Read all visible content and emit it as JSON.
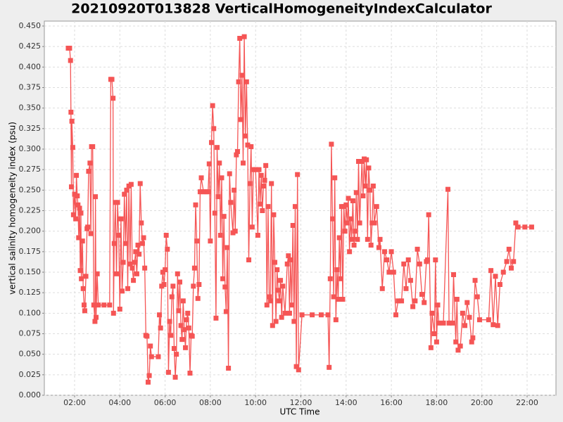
{
  "chart_data": {
    "type": "line",
    "title": "20210920T013828 VerticalHomogeneityIndexCalculator",
    "x_label": "UTC Time",
    "y_label": "vertical salinity homogeneity index (psu)",
    "grid": true,
    "xlim": [
      0.663,
      23.275
    ],
    "ylim": [
      0,
      0.456
    ],
    "xticks": [
      {
        "value": 2,
        "label": "02:00"
      },
      {
        "value": 4,
        "label": "04:00"
      },
      {
        "value": 6,
        "label": "06:00"
      },
      {
        "value": 8,
        "label": "08:00"
      },
      {
        "value": 10,
        "label": "10:00"
      },
      {
        "value": 12,
        "label": "12:00"
      },
      {
        "value": 14,
        "label": "14:00"
      },
      {
        "value": 16,
        "label": "16:00"
      },
      {
        "value": 18,
        "label": "18:00"
      },
      {
        "value": 20,
        "label": "20:00"
      },
      {
        "value": 22,
        "label": "22:00"
      }
    ],
    "yticks": [
      {
        "value": 0,
        "label": "0.000"
      },
      {
        "value": 0.025,
        "label": "0.025"
      },
      {
        "value": 0.05,
        "label": "0.050"
      },
      {
        "value": 0.075,
        "label": "0.075"
      },
      {
        "value": 0.1,
        "label": "0.100"
      },
      {
        "value": 0.125,
        "label": "0.125"
      },
      {
        "value": 0.15,
        "label": "0.150"
      },
      {
        "value": 0.175,
        "label": "0.175"
      },
      {
        "value": 0.2,
        "label": "0.200"
      },
      {
        "value": 0.225,
        "label": "0.225"
      },
      {
        "value": 0.25,
        "label": "0.250"
      },
      {
        "value": 0.275,
        "label": "0.275"
      },
      {
        "value": 0.3,
        "label": "0.300"
      },
      {
        "value": 0.325,
        "label": "0.325"
      },
      {
        "value": 0.35,
        "label": "0.350"
      },
      {
        "value": 0.375,
        "label": "0.375"
      },
      {
        "value": 0.4,
        "label": "0.400"
      },
      {
        "value": 0.425,
        "label": "0.425"
      },
      {
        "value": 0.45,
        "label": "0.450"
      }
    ],
    "series": [
      {
        "color": "#f55555",
        "x": [
          1.72,
          1.78,
          1.82,
          1.84,
          1.86,
          1.88,
          1.92,
          1.95,
          2.0,
          2.05,
          2.08,
          2.12,
          2.15,
          2.18,
          2.22,
          2.25,
          2.28,
          2.3,
          2.35,
          2.38,
          2.42,
          2.45,
          2.5,
          2.55,
          2.58,
          2.62,
          2.68,
          2.72,
          2.75,
          2.8,
          2.85,
          2.9,
          2.92,
          2.95,
          3.0,
          3.05,
          3.3,
          3.55,
          3.6,
          3.65,
          3.7,
          3.72,
          3.75,
          3.8,
          3.85,
          3.9,
          3.95,
          4.0,
          4.05,
          4.1,
          4.15,
          4.2,
          4.25,
          4.3,
          4.35,
          4.4,
          4.45,
          4.5,
          4.55,
          4.6,
          4.65,
          4.7,
          4.75,
          4.8,
          4.85,
          4.9,
          4.95,
          5.0,
          5.05,
          5.1,
          5.15,
          5.2,
          5.25,
          5.3,
          5.35,
          5.4,
          5.7,
          5.75,
          5.8,
          5.85,
          5.9,
          5.95,
          6.0,
          6.05,
          6.1,
          6.15,
          6.2,
          6.25,
          6.3,
          6.35,
          6.4,
          6.45,
          6.5,
          6.55,
          6.6,
          6.65,
          6.7,
          6.75,
          6.8,
          6.85,
          6.9,
          6.95,
          7.0,
          7.05,
          7.1,
          7.15,
          7.2,
          7.25,
          7.3,
          7.35,
          7.4,
          7.45,
          7.5,
          7.55,
          7.6,
          7.7,
          7.8,
          7.9,
          7.95,
          8.0,
          8.05,
          8.1,
          8.15,
          8.2,
          8.25,
          8.3,
          8.35,
          8.4,
          8.45,
          8.5,
          8.55,
          8.6,
          8.65,
          8.7,
          8.75,
          8.8,
          8.85,
          8.9,
          9.0,
          9.05,
          9.1,
          9.15,
          9.2,
          9.25,
          9.3,
          9.35,
          9.4,
          9.45,
          9.5,
          9.55,
          9.6,
          9.65,
          9.7,
          9.75,
          9.8,
          9.85,
          9.9,
          10.0,
          10.1,
          10.15,
          10.2,
          10.25,
          10.3,
          10.35,
          10.4,
          10.45,
          10.5,
          10.55,
          10.6,
          10.65,
          10.7,
          10.75,
          10.8,
          10.85,
          10.9,
          10.95,
          11.0,
          11.05,
          11.1,
          11.15,
          11.2,
          11.3,
          11.4,
          11.45,
          11.5,
          11.55,
          11.6,
          11.65,
          11.7,
          11.75,
          11.8,
          11.85,
          11.9,
          12.05,
          12.5,
          12.9,
          13.2,
          13.25,
          13.3,
          13.35,
          13.4,
          13.45,
          13.5,
          13.55,
          13.6,
          13.65,
          13.7,
          13.75,
          13.8,
          13.85,
          13.9,
          13.95,
          14.0,
          14.05,
          14.1,
          14.15,
          14.2,
          14.25,
          14.3,
          14.35,
          14.4,
          14.45,
          14.5,
          14.55,
          14.6,
          14.7,
          14.75,
          14.8,
          14.85,
          14.9,
          14.95,
          15.0,
          15.05,
          15.1,
          15.15,
          15.2,
          15.25,
          15.35,
          15.45,
          15.5,
          15.6,
          15.7,
          15.8,
          15.9,
          16.0,
          16.1,
          16.2,
          16.3,
          16.45,
          16.55,
          16.65,
          16.75,
          16.85,
          16.95,
          17.05,
          17.15,
          17.25,
          17.35,
          17.45,
          17.55,
          17.6,
          17.65,
          17.75,
          17.8,
          17.9,
          17.95,
          18.0,
          18.05,
          18.1,
          18.3,
          18.5,
          18.55,
          18.7,
          18.75,
          18.85,
          18.9,
          18.95,
          19.05,
          19.15,
          19.25,
          19.35,
          19.45,
          19.55,
          19.6,
          19.7,
          19.8,
          19.9,
          20.3,
          20.4,
          20.5,
          20.6,
          20.7,
          20.8,
          20.95,
          21.1,
          21.2,
          21.3,
          21.4,
          21.5,
          21.6,
          21.9,
          22.2
        ],
        "values": [
          0.423,
          0.423,
          0.408,
          0.345,
          0.254,
          0.334,
          0.302,
          0.22,
          0.245,
          0.215,
          0.268,
          0.243,
          0.232,
          0.192,
          0.228,
          0.152,
          0.222,
          0.142,
          0.188,
          0.13,
          0.11,
          0.103,
          0.145,
          0.203,
          0.205,
          0.273,
          0.283,
          0.197,
          0.303,
          0.303,
          0.11,
          0.09,
          0.242,
          0.095,
          0.148,
          0.11,
          0.11,
          0.11,
          0.385,
          0.385,
          0.362,
          0.1,
          0.185,
          0.235,
          0.148,
          0.235,
          0.195,
          0.105,
          0.215,
          0.127,
          0.162,
          0.245,
          0.185,
          0.25,
          0.13,
          0.255,
          0.16,
          0.257,
          0.155,
          0.14,
          0.162,
          0.175,
          0.148,
          0.183,
          0.172,
          0.258,
          0.21,
          0.185,
          0.192,
          0.155,
          0.073,
          0.072,
          0.016,
          0.024,
          0.06,
          0.047,
          0.047,
          0.098,
          0.082,
          0.133,
          0.15,
          0.135,
          0.153,
          0.195,
          0.178,
          0.028,
          0.09,
          0.073,
          0.12,
          0.133,
          0.057,
          0.022,
          0.05,
          0.148,
          0.103,
          0.138,
          0.085,
          0.068,
          0.115,
          0.08,
          0.058,
          0.092,
          0.1,
          0.082,
          0.027,
          0.073,
          0.072,
          0.133,
          0.155,
          0.232,
          0.188,
          0.118,
          0.135,
          0.248,
          0.265,
          0.248,
          0.248,
          0.248,
          0.282,
          0.188,
          0.308,
          0.353,
          0.325,
          0.222,
          0.094,
          0.302,
          0.242,
          0.283,
          0.195,
          0.265,
          0.142,
          0.218,
          0.132,
          0.102,
          0.18,
          0.033,
          0.27,
          0.235,
          0.198,
          0.25,
          0.2,
          0.293,
          0.297,
          0.382,
          0.435,
          0.336,
          0.39,
          0.283,
          0.437,
          0.316,
          0.382,
          0.305,
          0.165,
          0.258,
          0.303,
          0.205,
          0.275,
          0.275,
          0.195,
          0.275,
          0.233,
          0.268,
          0.225,
          0.255,
          0.262,
          0.28,
          0.11,
          0.23,
          0.12,
          0.115,
          0.258,
          0.085,
          0.22,
          0.162,
          0.09,
          0.153,
          0.128,
          0.115,
          0.14,
          0.095,
          0.133,
          0.1,
          0.16,
          0.17,
          0.1,
          0.165,
          0.11,
          0.207,
          0.09,
          0.23,
          0.035,
          0.269,
          0.031,
          0.098,
          0.098,
          0.098,
          0.098,
          0.034,
          0.142,
          0.306,
          0.215,
          0.12,
          0.265,
          0.092,
          0.153,
          0.117,
          0.192,
          0.142,
          0.23,
          0.117,
          0.23,
          0.2,
          0.232,
          0.21,
          0.24,
          0.175,
          0.215,
          0.19,
          0.237,
          0.183,
          0.2,
          0.247,
          0.19,
          0.285,
          0.21,
          0.285,
          0.243,
          0.288,
          0.255,
          0.287,
          0.19,
          0.277,
          0.25,
          0.183,
          0.21,
          0.255,
          0.21,
          0.23,
          0.18,
          0.19,
          0.13,
          0.175,
          0.165,
          0.15,
          0.175,
          0.15,
          0.098,
          0.115,
          0.115,
          0.16,
          0.13,
          0.165,
          0.14,
          0.108,
          0.115,
          0.178,
          0.16,
          0.123,
          0.113,
          0.163,
          0.165,
          0.22,
          0.058,
          0.1,
          0.075,
          0.165,
          0.065,
          0.11,
          0.088,
          0.088,
          0.251,
          0.088,
          0.088,
          0.147,
          0.065,
          0.117,
          0.055,
          0.06,
          0.1,
          0.085,
          0.113,
          0.095,
          0.065,
          0.07,
          0.14,
          0.12,
          0.092,
          0.092,
          0.152,
          0.086,
          0.145,
          0.085,
          0.135,
          0.15,
          0.163,
          0.178,
          0.155,
          0.163,
          0.21,
          0.205,
          0.205,
          0.205
        ]
      }
    ]
  }
}
